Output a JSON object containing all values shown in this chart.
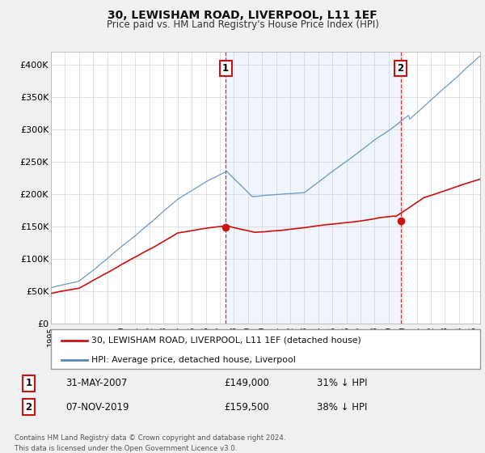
{
  "title": "30, LEWISHAM ROAD, LIVERPOOL, L11 1EF",
  "subtitle": "Price paid vs. HM Land Registry's House Price Index (HPI)",
  "hpi_color": "#5588bb",
  "price_color": "#cc1111",
  "ylabel_ticks": [
    "£0",
    "£50K",
    "£100K",
    "£150K",
    "£200K",
    "£250K",
    "£300K",
    "£350K",
    "£400K"
  ],
  "ylabel_values": [
    0,
    50000,
    100000,
    150000,
    200000,
    250000,
    300000,
    350000,
    400000
  ],
  "ylim": [
    0,
    420000
  ],
  "xlim_start": 1995.3,
  "xlim_end": 2025.5,
  "transaction1_x": 2007.42,
  "transaction1_y": 149000,
  "transaction2_x": 2019.85,
  "transaction2_y": 159500,
  "legend_line1": "30, LEWISHAM ROAD, LIVERPOOL, L11 1EF (detached house)",
  "legend_line2": "HPI: Average price, detached house, Liverpool",
  "table_row1": [
    "1",
    "31-MAY-2007",
    "£149,000",
    "31% ↓ HPI"
  ],
  "table_row2": [
    "2",
    "07-NOV-2019",
    "£159,500",
    "38% ↓ HPI"
  ],
  "footnote": "Contains HM Land Registry data © Crown copyright and database right 2024.\nThis data is licensed under the Open Government Licence v3.0.",
  "background_color": "#f0f0f0",
  "plot_bg": "#ffffff",
  "shade_color": "#ddeeff"
}
